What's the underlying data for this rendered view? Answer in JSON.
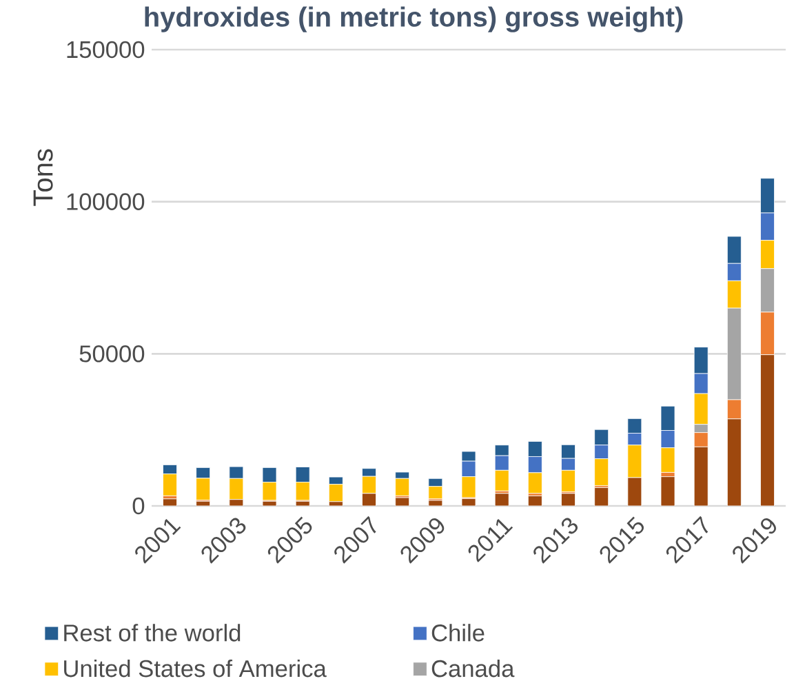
{
  "chart_data": {
    "type": "bar",
    "title": "hydroxides (in metric tons) gross weight)",
    "ylabel": "Tons",
    "stacked": true,
    "categories": [
      "2001",
      null,
      "2003",
      null,
      "2005",
      null,
      "2007",
      null,
      "2009",
      null,
      "2011",
      null,
      "2013",
      null,
      "2015",
      null,
      "2017",
      null,
      "2019"
    ],
    "series": [
      {
        "color": "#9e480e",
        "values": [
          2300,
          1500,
          2100,
          1500,
          1500,
          1400,
          4100,
          2700,
          1800,
          2400,
          4100,
          3300,
          4100,
          6000,
          9300,
          9600,
          19400,
          28600,
          49700
        ]
      },
      {
        "color": "#ed7d31",
        "values": [
          1000,
          400,
          null,
          300,
          300,
          0,
          null,
          600,
          500,
          300,
          800,
          800,
          500,
          600,
          null,
          1400,
          4700,
          6300,
          14000
        ]
      },
      {
        "name": "Canada",
        "color": "#a5a5a5",
        "values": [
          0,
          0,
          0,
          0,
          0,
          0,
          0,
          0,
          0,
          0,
          0,
          0,
          0,
          0,
          0,
          null,
          2700,
          30100,
          14300
        ]
      },
      {
        "name": "United States of America",
        "color": "#ffc000",
        "values": [
          7200,
          7200,
          6900,
          6000,
          6000,
          5700,
          5600,
          5700,
          4100,
          6900,
          6800,
          6800,
          7100,
          8900,
          10700,
          8100,
          10100,
          9000,
          9300
        ]
      },
      {
        "name": "Chile",
        "color": "#4472c4",
        "values": [
          0,
          0,
          0,
          0,
          0,
          0,
          0,
          0,
          0,
          5100,
          4800,
          5300,
          3900,
          4500,
          3900,
          5700,
          6600,
          5700,
          9000
        ]
      },
      {
        "name": "Rest of the world",
        "color": "#255e91",
        "values": [
          3000,
          3500,
          3900,
          4800,
          5000,
          2400,
          2600,
          2100,
          2600,
          3200,
          3500,
          5000,
          4500,
          5100,
          4800,
          8000,
          8700,
          8900,
          11400
        ]
      }
    ],
    "ylim": [
      0,
      150000
    ],
    "yticks": [
      0,
      50000,
      100000,
      150000
    ],
    "grid": "y",
    "legend": "bottom"
  }
}
